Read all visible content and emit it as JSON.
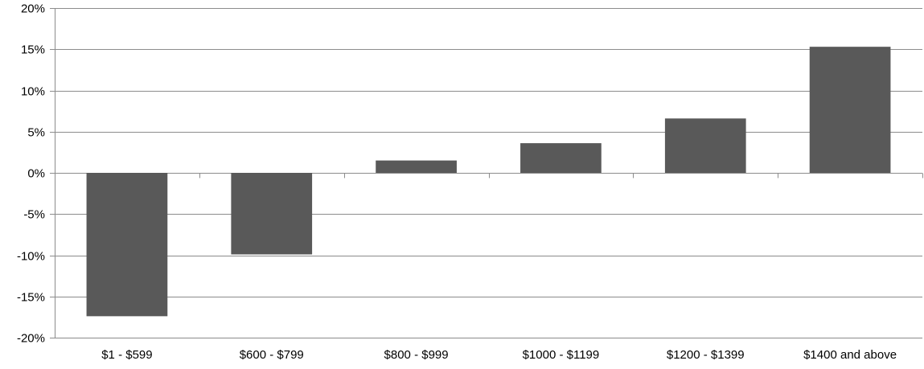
{
  "chart_data": {
    "type": "bar",
    "categories": [
      "$1 - $599",
      "$600 - $799",
      "$800 - $999",
      "$1000 - $1199",
      "$1200 - $1399",
      "$1400 and above"
    ],
    "values": [
      -17.4,
      -9.9,
      1.5,
      3.6,
      6.6,
      15.3
    ],
    "ylim": [
      -20,
      20
    ],
    "y_ticks": [
      20,
      15,
      10,
      5,
      0,
      -5,
      -10,
      -15,
      -20
    ],
    "y_tick_labels": [
      "20%",
      "15%",
      "10%",
      "5%",
      "0%",
      "-5%",
      "-10%",
      "-15%",
      "-20%"
    ],
    "title": "",
    "xlabel": "",
    "ylabel": "",
    "grid": true,
    "legend": "none",
    "bar_color": "#595959",
    "grid_color": "#8c8c8c"
  }
}
